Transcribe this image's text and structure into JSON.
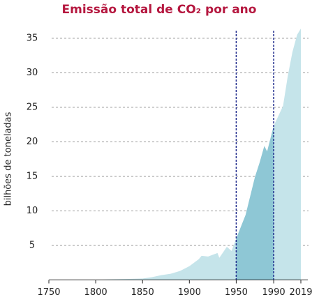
{
  "chart_data": {
    "type": "area",
    "title": "Emissão total de CO₂ por ano",
    "y_label": "bilhões de toneladas",
    "x": [
      1750,
      1800,
      1850,
      1860,
      1870,
      1880,
      1890,
      1900,
      1910,
      1913,
      1920,
      1930,
      1932,
      1940,
      1945,
      1950,
      1960,
      1970,
      1975,
      1980,
      1983,
      1990,
      2000,
      2005,
      2010,
      2015,
      2019
    ],
    "values": [
      0,
      0.03,
      0.2,
      0.4,
      0.7,
      0.9,
      1.3,
      2,
      3,
      3.5,
      3.4,
      3.9,
      3.2,
      4.8,
      4.2,
      6,
      9.4,
      14.9,
      17,
      19.4,
      18.6,
      22.3,
      25.2,
      29.5,
      33,
      35.5,
      36.4
    ],
    "color": "#c5e4ea",
    "highlight_color": "#8ec7d5",
    "highlight_range": [
      1950,
      1990
    ],
    "highlight_line_color": "#1f2a8c",
    "xlim": [
      1750,
      2019
    ],
    "xticks": [
      1750,
      1800,
      1850,
      1900,
      1950,
      1990,
      2019
    ],
    "ylim": [
      0,
      36.5
    ],
    "yticks": [
      5,
      10,
      15,
      20,
      25,
      30,
      35
    ],
    "grid": true
  }
}
